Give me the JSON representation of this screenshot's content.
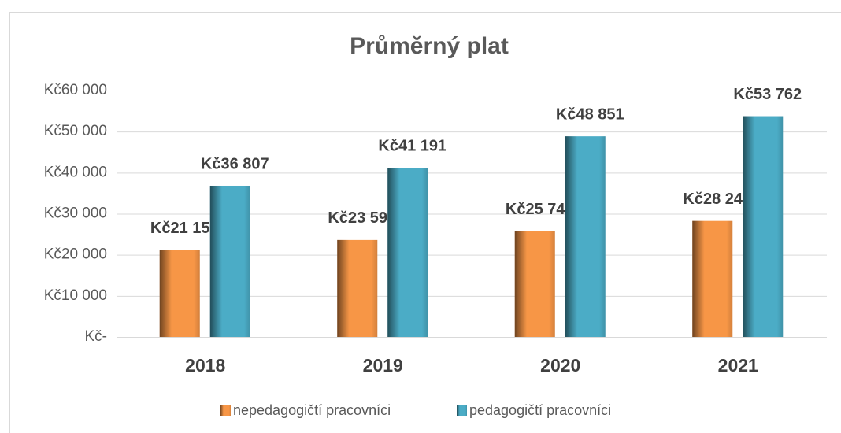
{
  "chart_data": {
    "type": "bar",
    "title": "Průměrný plat",
    "categories": [
      "2018",
      "2019",
      "2020",
      "2021"
    ],
    "series": [
      {
        "name": "nepedagogičtí pracovníci",
        "color": "#f79646",
        "values": [
          21159,
          23599,
          25744,
          28240
        ],
        "value_labels": [
          "Kč21 159",
          "Kč23 599",
          "Kč25 744",
          "Kč28 240"
        ]
      },
      {
        "name": "pedagogičtí pracovníci",
        "color": "#4bacc6",
        "values": [
          36807,
          41191,
          48851,
          53762
        ],
        "value_labels": [
          "Kč36 807",
          "Kč41 191",
          "Kč48 851",
          "Kč53 762"
        ]
      }
    ],
    "ylim": [
      0,
      60000
    ],
    "yticks": [
      {
        "value": 0,
        "label": "Kč-"
      },
      {
        "value": 10000,
        "label": "Kč10 000"
      },
      {
        "value": 20000,
        "label": "Kč20 000"
      },
      {
        "value": 30000,
        "label": "Kč30 000"
      },
      {
        "value": 40000,
        "label": "Kč40 000"
      },
      {
        "value": 50000,
        "label": "Kč50 000"
      },
      {
        "value": 60000,
        "label": "Kč60 000"
      }
    ],
    "grid": true,
    "legend": "bottom"
  }
}
